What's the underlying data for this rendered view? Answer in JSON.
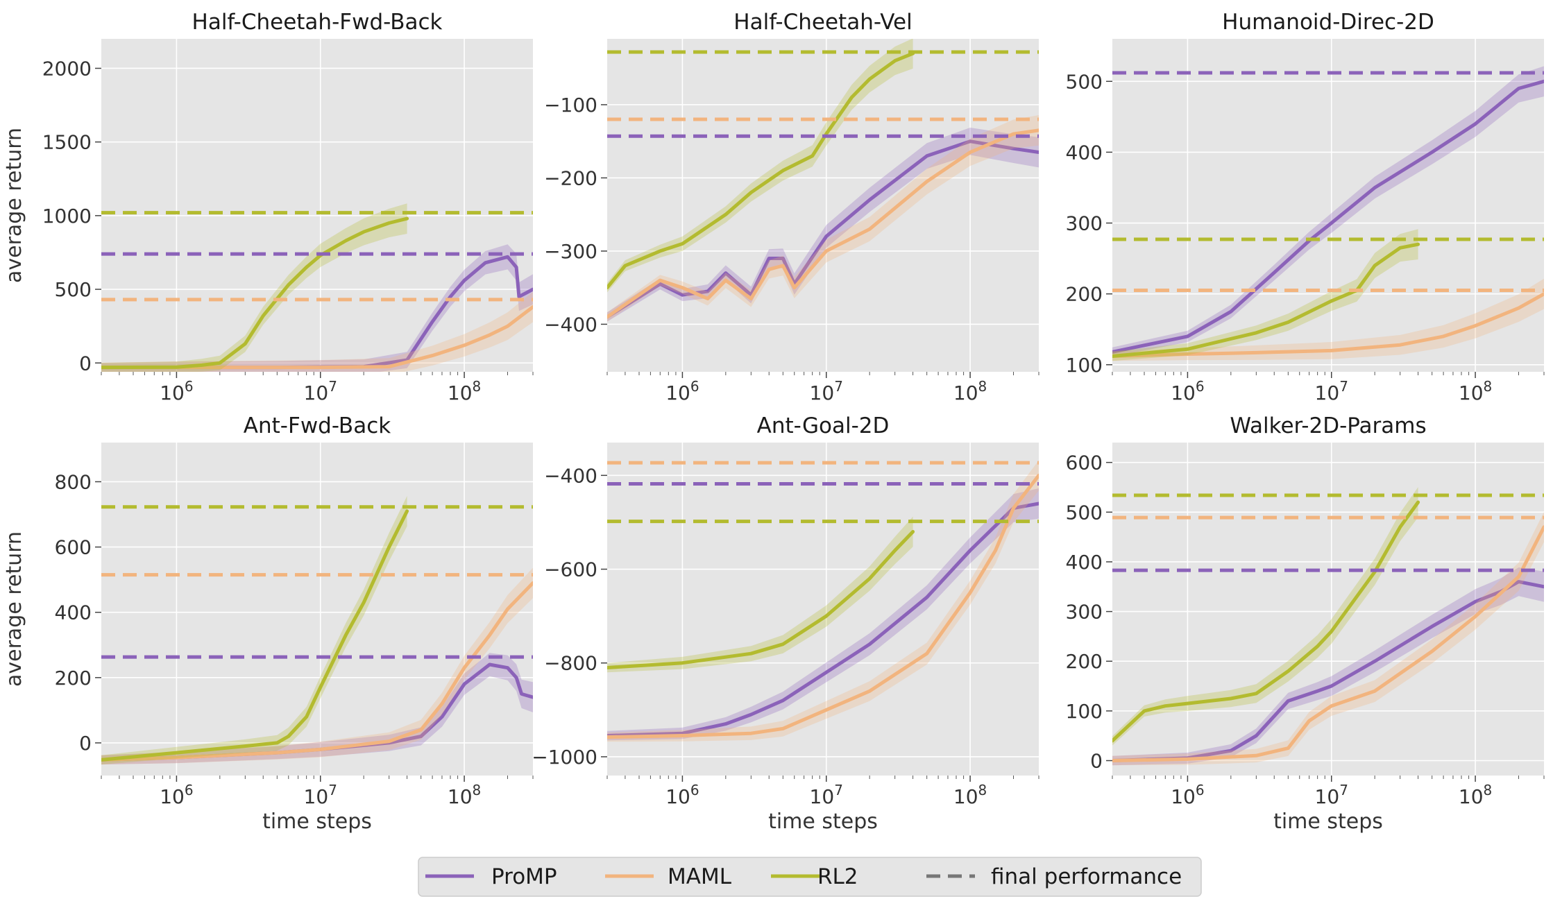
{
  "chart_data": [
    {
      "type": "line",
      "title": "Half-Cheetah-Fwd-Back",
      "xlabel": "",
      "ylabel": "average return",
      "xscale": "log",
      "xlim": [
        300000,
        300000000
      ],
      "ylim": [
        -60,
        2200
      ],
      "yticks": [
        0,
        500,
        1000,
        1500,
        2000
      ],
      "series": [
        {
          "name": "ProMP",
          "x": [
            300000,
            1000000,
            5000000,
            20000000,
            40000000,
            60000000,
            80000000,
            100000000,
            140000000,
            200000000,
            230000000,
            240000000,
            300000000
          ],
          "y": [
            -30,
            -30,
            -30,
            -25,
            20,
            280,
            450,
            560,
            680,
            720,
            650,
            450,
            500
          ]
        },
        {
          "name": "MAML",
          "x": [
            300000,
            1000000,
            10000000,
            30000000,
            60000000,
            100000000,
            150000000,
            200000000,
            300000000
          ],
          "y": [
            -30,
            -30,
            -30,
            -25,
            50,
            120,
            190,
            250,
            380
          ]
        },
        {
          "name": "RL2",
          "x": [
            300000,
            1000000,
            1500000,
            2000000,
            3000000,
            4000000,
            6000000,
            8000000,
            10000000,
            15000000,
            20000000,
            30000000,
            40000000
          ],
          "y": [
            -30,
            -28,
            -15,
            0,
            130,
            320,
            530,
            650,
            730,
            830,
            890,
            950,
            980
          ]
        }
      ],
      "final_performance": {
        "ProMP": 740,
        "MAML": 430,
        "RL2": 1020
      }
    },
    {
      "type": "line",
      "title": "Half-Cheetah-Vel",
      "xlabel": "",
      "ylabel": "",
      "xscale": "log",
      "xlim": [
        300000,
        300000000
      ],
      "ylim": [
        -465,
        -10
      ],
      "yticks": [
        -100,
        -200,
        -300,
        -400
      ],
      "series": [
        {
          "name": "ProMP",
          "x": [
            300000,
            700000,
            1000000,
            1500000,
            2000000,
            3000000,
            4000000,
            5000000,
            6000000,
            10000000,
            20000000,
            50000000,
            100000000,
            200000000,
            300000000
          ],
          "y": [
            -390,
            -345,
            -360,
            -355,
            -330,
            -360,
            -310,
            -310,
            -345,
            -280,
            -230,
            -170,
            -150,
            -160,
            -165
          ]
        },
        {
          "name": "MAML",
          "x": [
            300000,
            700000,
            1000000,
            1500000,
            2000000,
            3000000,
            4000000,
            5000000,
            6000000,
            10000000,
            20000000,
            50000000,
            100000000,
            200000000,
            300000000
          ],
          "y": [
            -390,
            -340,
            -350,
            -365,
            -340,
            -365,
            -325,
            -320,
            -350,
            -300,
            -270,
            -205,
            -165,
            -140,
            -135
          ]
        },
        {
          "name": "RL2",
          "x": [
            300000,
            400000,
            700000,
            1000000,
            2000000,
            3000000,
            5000000,
            8000000,
            10000000,
            15000000,
            20000000,
            30000000,
            40000000
          ],
          "y": [
            -350,
            -320,
            -300,
            -290,
            -250,
            -220,
            -190,
            -170,
            -140,
            -90,
            -65,
            -40,
            -30
          ]
        }
      ],
      "final_performance": {
        "ProMP": -143,
        "MAML": -120,
        "RL2": -28
      }
    },
    {
      "type": "line",
      "title": "Humanoid-Direc-2D",
      "xlabel": "",
      "ylabel": "",
      "xscale": "log",
      "xlim": [
        300000,
        300000000
      ],
      "ylim": [
        90,
        560
      ],
      "yticks": [
        100,
        200,
        300,
        400,
        500
      ],
      "series": [
        {
          "name": "ProMP",
          "x": [
            300000,
            1000000,
            2000000,
            4000000,
            7000000,
            10000000,
            20000000,
            50000000,
            100000000,
            200000000,
            300000000
          ],
          "y": [
            118,
            140,
            175,
            230,
            275,
            300,
            350,
            400,
            440,
            490,
            500
          ]
        },
        {
          "name": "MAML",
          "x": [
            300000,
            1000000,
            3000000,
            10000000,
            30000000,
            60000000,
            100000000,
            200000000,
            300000000
          ],
          "y": [
            112,
            115,
            117,
            120,
            128,
            140,
            155,
            180,
            200
          ]
        },
        {
          "name": "RL2",
          "x": [
            300000,
            1000000,
            3000000,
            5000000,
            10000000,
            15000000,
            20000000,
            30000000,
            40000000
          ],
          "y": [
            112,
            122,
            145,
            160,
            190,
            205,
            240,
            265,
            270
          ]
        }
      ],
      "final_performance": {
        "ProMP": 512,
        "MAML": 205,
        "RL2": 277
      }
    },
    {
      "type": "line",
      "title": "Ant-Fwd-Back",
      "xlabel": "time steps",
      "ylabel": "average return",
      "xscale": "log",
      "xlim": [
        300000,
        300000000
      ],
      "ylim": [
        -100,
        920
      ],
      "yticks": [
        0,
        200,
        400,
        600,
        800
      ],
      "series": [
        {
          "name": "ProMP",
          "x": [
            300000,
            1000000,
            5000000,
            10000000,
            30000000,
            50000000,
            70000000,
            100000000,
            150000000,
            200000000,
            230000000,
            250000000,
            300000000
          ],
          "y": [
            -52,
            -45,
            -30,
            -20,
            0,
            20,
            80,
            180,
            240,
            230,
            200,
            150,
            140
          ]
        },
        {
          "name": "MAML",
          "x": [
            300000,
            1000000,
            5000000,
            10000000,
            30000000,
            50000000,
            70000000,
            100000000,
            150000000,
            200000000,
            300000000
          ],
          "y": [
            -52,
            -45,
            -30,
            -20,
            5,
            40,
            120,
            230,
            330,
            410,
            490
          ]
        },
        {
          "name": "RL2",
          "x": [
            300000,
            1000000,
            3000000,
            5000000,
            6000000,
            8000000,
            10000000,
            15000000,
            20000000,
            30000000,
            40000000
          ],
          "y": [
            -52,
            -30,
            -10,
            0,
            20,
            80,
            170,
            330,
            430,
            600,
            710
          ]
        }
      ],
      "final_performance": {
        "ProMP": 263,
        "MAML": 515,
        "RL2": 723
      }
    },
    {
      "type": "line",
      "title": "Ant-Goal-2D",
      "xlabel": "time steps",
      "ylabel": "",
      "xscale": "log",
      "xlim": [
        300000,
        300000000
      ],
      "ylim": [
        -1040,
        -330
      ],
      "yticks": [
        -400,
        -600,
        -800,
        -1000
      ],
      "series": [
        {
          "name": "ProMP",
          "x": [
            300000,
            1000000,
            2000000,
            3000000,
            5000000,
            10000000,
            20000000,
            50000000,
            100000000,
            200000000,
            300000000
          ],
          "y": [
            -955,
            -950,
            -930,
            -910,
            -880,
            -820,
            -760,
            -660,
            -560,
            -470,
            -460
          ]
        },
        {
          "name": "MAML",
          "x": [
            300000,
            1000000,
            3000000,
            5000000,
            10000000,
            20000000,
            50000000,
            100000000,
            150000000,
            200000000,
            300000000
          ],
          "y": [
            -958,
            -955,
            -950,
            -940,
            -900,
            -860,
            -780,
            -650,
            -560,
            -470,
            -400
          ]
        },
        {
          "name": "RL2",
          "x": [
            300000,
            1000000,
            3000000,
            5000000,
            10000000,
            20000000,
            30000000,
            40000000
          ],
          "y": [
            -810,
            -800,
            -780,
            -760,
            -700,
            -620,
            -560,
            -520
          ]
        }
      ],
      "final_performance": {
        "ProMP": -418,
        "MAML": -373,
        "RL2": -498
      }
    },
    {
      "type": "line",
      "title": "Walker-2D-Params",
      "xlabel": "time steps",
      "ylabel": "",
      "xscale": "log",
      "xlim": [
        300000,
        300000000
      ],
      "ylim": [
        -30,
        640
      ],
      "yticks": [
        0,
        100,
        200,
        300,
        400,
        500,
        600
      ],
      "series": [
        {
          "name": "ProMP",
          "x": [
            300000,
            1000000,
            2000000,
            3000000,
            5000000,
            8000000,
            10000000,
            20000000,
            50000000,
            100000000,
            150000000,
            200000000,
            300000000
          ],
          "y": [
            0,
            5,
            20,
            50,
            120,
            140,
            150,
            200,
            270,
            320,
            340,
            360,
            350
          ]
        },
        {
          "name": "MAML",
          "x": [
            300000,
            1000000,
            3000000,
            5000000,
            7000000,
            10000000,
            20000000,
            50000000,
            100000000,
            200000000,
            300000000
          ],
          "y": [
            0,
            3,
            10,
            25,
            80,
            110,
            140,
            220,
            290,
            370,
            470
          ]
        },
        {
          "name": "RL2",
          "x": [
            300000,
            500000,
            700000,
            1000000,
            2000000,
            3000000,
            5000000,
            8000000,
            10000000,
            20000000,
            30000000,
            40000000
          ],
          "y": [
            40,
            100,
            110,
            115,
            125,
            135,
            180,
            230,
            260,
            380,
            470,
            520
          ]
        }
      ],
      "final_performance": {
        "ProMP": 383,
        "MAML": 489,
        "RL2": 534
      }
    }
  ],
  "legend": {
    "placement": "bottom-center",
    "items": [
      {
        "label": "ProMP",
        "color": "#8b62b9",
        "style": "solid"
      },
      {
        "label": "MAML",
        "color": "#f2b47e",
        "style": "solid"
      },
      {
        "label": "RL2",
        "color": "#b3bb2f",
        "style": "solid"
      },
      {
        "label": "final performance",
        "color": "#777777",
        "style": "dashed"
      }
    ]
  },
  "colors": {
    "ProMP": "#8b62b9",
    "MAML": "#f2b47e",
    "RL2": "#b3bb2f",
    "plot_background": "#e5e5e5",
    "grid": "#ffffff"
  },
  "x_tick_labels": [
    "10^6",
    "10^7",
    "10^8"
  ],
  "grid": true
}
